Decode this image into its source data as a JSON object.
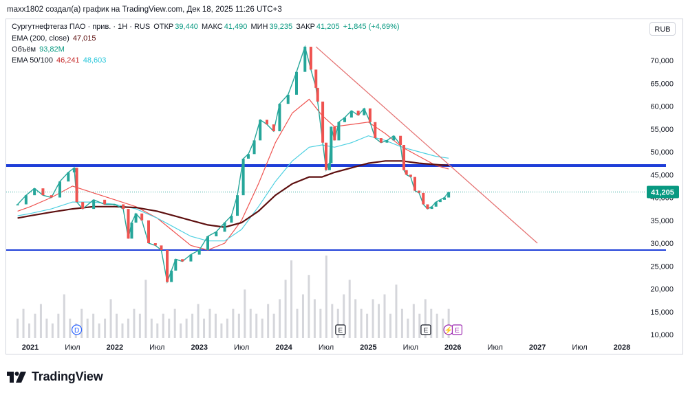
{
  "header": {
    "line": "maxx1802 создал(а) график на TradingView.com, Дек 18, 2025 11:26 UTC+3"
  },
  "legend": {
    "symbol": "Сургутнефтегаз ПАО · прив. · 1Н · RUS",
    "open_label": "ОТКР",
    "open": "39,440",
    "high_label": "МАКС",
    "high": "41,490",
    "low_label": "МИН",
    "low": "39,235",
    "close_label": "ЗАКР",
    "close": "41,205",
    "change": "+1,845 (+4,69%)",
    "ema200_label": "EMA (200, close)",
    "ema200": "47,015",
    "volume_label": "Объём",
    "volume": "93,82M",
    "ema50_100_label": "EMA 50/100",
    "ema50": "46,241",
    "ema100": "48,603"
  },
  "currency_button": "RUB",
  "brand": "TradingView",
  "chart_data": {
    "type": "line",
    "title": "Сургутнефтегаз ПАО · прив. · 1Н · RUS",
    "xlabel": "",
    "ylabel": "",
    "x_ticks": [
      "2021",
      "Июл",
      "2022",
      "Июл",
      "2023",
      "Июл",
      "2024",
      "Июл",
      "2025",
      "Июл",
      "2026",
      "Июл",
      "2027",
      "Июл",
      "2028"
    ],
    "x_tick_t": [
      2021.0,
      2021.5,
      2022.0,
      2022.5,
      2023.0,
      2023.5,
      2024.0,
      2024.5,
      2025.0,
      2025.5,
      2026.0,
      2026.5,
      2027.0,
      2027.5,
      2028.0
    ],
    "y_ticks": [
      "10,000",
      "15,000",
      "20,000",
      "25,000",
      "30,000",
      "35,000",
      "40,000",
      "45,000",
      "50,000",
      "55,000",
      "60,000",
      "65,000",
      "70,000"
    ],
    "y_tick_values": [
      10,
      15,
      20,
      25,
      30,
      35,
      40,
      45,
      50,
      55,
      60,
      65,
      70
    ],
    "ylim": [
      9,
      75
    ],
    "last_price": 41.205,
    "last_price_label": "41,205",
    "series": [
      {
        "name": "price",
        "color": "#26a69a",
        "x": [
          2020.85,
          2020.95,
          2021.05,
          2021.15,
          2021.25,
          2021.35,
          2021.45,
          2021.52,
          2021.55,
          2021.62,
          2021.75,
          2021.88,
          2022.0,
          2022.1,
          2022.16,
          2022.2,
          2022.25,
          2022.32,
          2022.4,
          2022.48,
          2022.55,
          2022.62,
          2022.67,
          2022.72,
          2022.8,
          2022.9,
          2023.0,
          2023.1,
          2023.2,
          2023.3,
          2023.38,
          2023.45,
          2023.52,
          2023.58,
          2023.65,
          2023.72,
          2023.8,
          2023.88,
          2023.95,
          2024.05,
          2024.15,
          2024.25,
          2024.32,
          2024.38,
          2024.4,
          2024.46,
          2024.5,
          2024.54,
          2024.56,
          2024.6,
          2024.65,
          2024.72,
          2024.8,
          2024.88,
          2024.95,
          2025.02,
          2025.08,
          2025.15,
          2025.22,
          2025.3,
          2025.38,
          2025.42,
          2025.45,
          2025.5,
          2025.55,
          2025.6,
          2025.65,
          2025.7,
          2025.75,
          2025.8,
          2025.85,
          2025.9,
          2025.95
        ],
        "values": [
          38.5,
          40.5,
          42.0,
          40.5,
          40.0,
          43.5,
          45.5,
          46.5,
          39.0,
          37.5,
          39.5,
          38.5,
          38.5,
          37.5,
          31.0,
          34.5,
          36.5,
          35.0,
          30.0,
          29.5,
          28.5,
          21.5,
          24.0,
          26.5,
          26.0,
          27.5,
          28.5,
          31.5,
          32.5,
          34.5,
          36.0,
          40.5,
          48.5,
          49.5,
          52.5,
          57.0,
          56.0,
          54.5,
          60.5,
          62.5,
          67.5,
          73.0,
          68.0,
          64.0,
          61.0,
          52.0,
          46.0,
          47.5,
          55.5,
          52.5,
          56.5,
          57.5,
          59.0,
          58.0,
          59.5,
          56.5,
          53.0,
          52.0,
          52.5,
          53.5,
          51.5,
          46.0,
          45.0,
          44.5,
          41.5,
          41.0,
          38.5,
          37.5,
          38.0,
          39.0,
          39.5,
          40.0,
          41.205
        ]
      },
      {
        "name": "EMA 50",
        "color": "#ef5350",
        "x": [
          2020.85,
          2021.0,
          2021.25,
          2021.5,
          2021.75,
          2022.0,
          2022.25,
          2022.5,
          2022.7,
          2022.9,
          2023.1,
          2023.3,
          2023.5,
          2023.7,
          2023.9,
          2024.1,
          2024.3,
          2024.45,
          2024.6,
          2024.8,
          2025.0,
          2025.2,
          2025.4,
          2025.6,
          2025.8,
          2025.95
        ],
        "values": [
          37.0,
          38.0,
          40.0,
          42.5,
          41.0,
          39.5,
          38.0,
          35.5,
          32.5,
          29.5,
          28.5,
          30.0,
          35.0,
          43.0,
          52.0,
          58.5,
          61.5,
          58.0,
          55.5,
          56.0,
          56.5,
          54.0,
          51.0,
          49.0,
          47.0,
          46.241
        ]
      },
      {
        "name": "EMA 100",
        "color": "#4dd0e1",
        "x": [
          2020.85,
          2021.0,
          2021.25,
          2021.5,
          2021.75,
          2022.0,
          2022.25,
          2022.5,
          2022.7,
          2022.9,
          2023.1,
          2023.3,
          2023.5,
          2023.7,
          2023.9,
          2024.1,
          2024.3,
          2024.45,
          2024.6,
          2024.8,
          2025.0,
          2025.2,
          2025.4,
          2025.6,
          2025.8,
          2025.95
        ],
        "values": [
          36.0,
          36.5,
          37.5,
          39.0,
          39.0,
          38.5,
          37.5,
          35.5,
          33.5,
          31.5,
          30.5,
          30.5,
          33.0,
          38.0,
          43.5,
          48.0,
          51.0,
          51.5,
          51.0,
          52.0,
          53.5,
          52.5,
          51.0,
          50.0,
          49.0,
          48.603
        ]
      },
      {
        "name": "EMA 200",
        "color": "#5d0f0f",
        "x": [
          2020.85,
          2021.0,
          2021.25,
          2021.5,
          2021.75,
          2022.0,
          2022.25,
          2022.5,
          2022.7,
          2022.9,
          2023.1,
          2023.3,
          2023.5,
          2023.7,
          2023.9,
          2024.1,
          2024.3,
          2024.45,
          2024.6,
          2024.8,
          2025.0,
          2025.2,
          2025.4,
          2025.6,
          2025.8,
          2025.95
        ],
        "values": [
          35.5,
          36.0,
          36.8,
          37.5,
          38.0,
          38.0,
          37.8,
          37.0,
          36.0,
          35.0,
          34.0,
          33.5,
          34.5,
          37.0,
          40.5,
          43.0,
          44.5,
          44.5,
          45.5,
          46.5,
          47.5,
          48.0,
          48.0,
          47.5,
          47.2,
          47.015
        ]
      }
    ],
    "volume": [
      4,
      6,
      3,
      5,
      7,
      4,
      3,
      5,
      9,
      4,
      3,
      6,
      4,
      5,
      3,
      4,
      8,
      5,
      3,
      4,
      6,
      5,
      12,
      4,
      3,
      5,
      4,
      6,
      3,
      4,
      5,
      7,
      4,
      6,
      5,
      3,
      4,
      6,
      5,
      10,
      6,
      5,
      4,
      7,
      5,
      8,
      12,
      16,
      6,
      9,
      13,
      8,
      6,
      17,
      7,
      6,
      9,
      12,
      8,
      6,
      5,
      8,
      7,
      9,
      5,
      11,
      6,
      4,
      7,
      5,
      8,
      6,
      5,
      4,
      6
    ],
    "horizontal_levels": [
      {
        "name": "resistance",
        "value": 47.0,
        "color": "#1e3ed8"
      },
      {
        "name": "support",
        "value": 28.5,
        "color": "#1e3ed8"
      }
    ],
    "trendline": {
      "from": [
        2024.38,
        73.0
      ],
      "to": [
        2027.0,
        30.0
      ],
      "color": "#e57373"
    },
    "event_markers": [
      {
        "label": "D",
        "t": 2021.55
      },
      {
        "label": "E",
        "t": 2024.67
      },
      {
        "label": "E",
        "t": 2025.68
      },
      {
        "label": "⚡",
        "t": 2025.95
      },
      {
        "label": "E",
        "t": 2026.05
      }
    ]
  }
}
